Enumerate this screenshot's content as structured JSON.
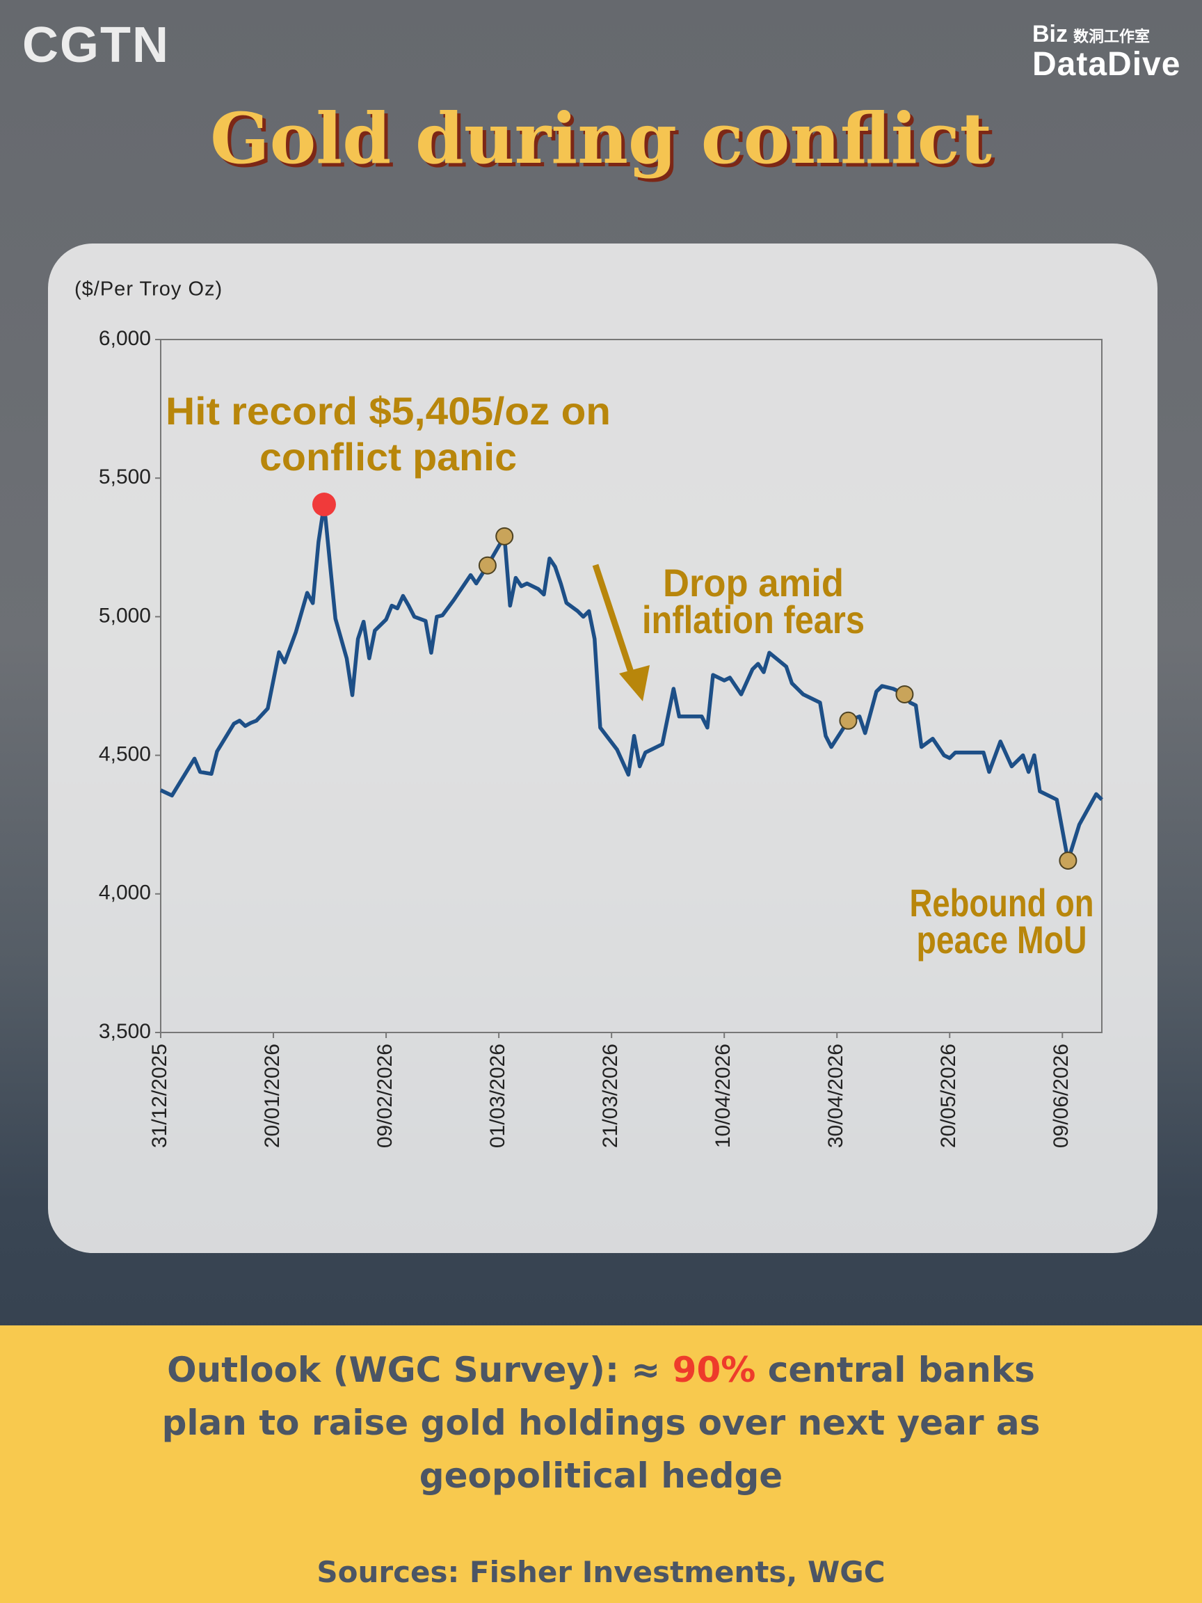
{
  "header": {
    "logo": "CGTN",
    "brand_top": "Biz",
    "brand_cn": "数洞工作室",
    "brand_main": "DataDive",
    "title": "Gold during conflict"
  },
  "chart_data": {
    "type": "line",
    "y_label": "($/Per Troy Oz)",
    "x": [
      "31/12/2025",
      "02/01/2026",
      "06/01/2026",
      "07/01/2026",
      "09/01/2026",
      "10/01/2026",
      "13/01/2026",
      "14/01/2026",
      "15/01/2026",
      "16/01/2026",
      "17/01/2026",
      "19/01/2026",
      "21/01/2026",
      "22/01/2026",
      "24/01/2026",
      "26/01/2026",
      "27/01/2026",
      "28/01/2026",
      "29/01/2026",
      "31/01/2026",
      "02/02/2026",
      "03/02/2026",
      "04/02/2026",
      "05/02/2026",
      "06/02/2026",
      "07/02/2026",
      "09/02/2026",
      "10/02/2026",
      "11/02/2026",
      "12/02/2026",
      "13/02/2026",
      "14/02/2026",
      "16/02/2026",
      "17/02/2026",
      "18/02/2026",
      "19/02/2026",
      "21/02/2026",
      "23/02/2026",
      "24/02/2026",
      "25/02/2026",
      "27/02/2026",
      "02/03/2026",
      "03/03/2026",
      "04/03/2026",
      "05/03/2026",
      "06/03/2026",
      "08/03/2026",
      "09/03/2026",
      "10/03/2026",
      "11/03/2026",
      "12/03/2026",
      "13/03/2026",
      "15/03/2026",
      "16/03/2026",
      "17/03/2026",
      "18/03/2026",
      "19/03/2026",
      "22/03/2026",
      "24/03/2026",
      "25/03/2026",
      "26/03/2026",
      "27/03/2026",
      "30/03/2026",
      "01/04/2026",
      "02/04/2026",
      "06/04/2026",
      "07/04/2026",
      "08/04/2026",
      "10/04/2026",
      "11/04/2026",
      "13/04/2026",
      "15/04/2026",
      "16/04/2026",
      "17/04/2026",
      "18/04/2026",
      "21/04/2026",
      "22/04/2026",
      "24/04/2026",
      "27/04/2026",
      "28/04/2026",
      "29/04/2026",
      "02/05/2026",
      "04/05/2026",
      "05/05/2026",
      "07/05/2026",
      "08/05/2026",
      "10/05/2026",
      "12/05/2026",
      "13/05/2026",
      "14/05/2026",
      "15/05/2026",
      "17/05/2026",
      "19/05/2026",
      "20/05/2026",
      "21/05/2026",
      "25/05/2026",
      "26/05/2026",
      "27/05/2026",
      "29/05/2026",
      "31/05/2026",
      "02/06/2026",
      "03/06/2026",
      "04/06/2026",
      "05/06/2026",
      "08/06/2026",
      "10/06/2026",
      "12/06/2026",
      "15/06/2026",
      "16/06/2026"
    ],
    "series": [
      {
        "color": "#1d4f87",
        "values": [
          4374,
          4355,
          4488,
          4440,
          4433,
          4514,
          4614,
          4625,
          4606,
          4617,
          4625,
          4669,
          4872,
          4835,
          4945,
          5086,
          5049,
          5270,
          5405,
          4993,
          4850,
          4717,
          4920,
          4982,
          4850,
          4950,
          4990,
          5040,
          5030,
          5075,
          5040,
          5000,
          4985,
          4870,
          5000,
          5005,
          5060,
          5120,
          5150,
          5120,
          5185,
          5290,
          5040,
          5140,
          5110,
          5120,
          5100,
          5080,
          5210,
          5180,
          5120,
          5050,
          5020,
          5000,
          5020,
          4920,
          4600,
          4520,
          4430,
          4570,
          4460,
          4510,
          4540,
          4740,
          4640,
          4640,
          4600,
          4790,
          4770,
          4780,
          4720,
          4810,
          4830,
          4800,
          4870,
          4820,
          4760,
          4720,
          4690,
          4570,
          4530,
          4625,
          4640,
          4580,
          4730,
          4750,
          4740,
          4720,
          4690,
          4680,
          4530,
          4560,
          4500,
          4490,
          4510,
          4510,
          4510,
          4440,
          4550,
          4460,
          4500,
          4440,
          4500,
          4370,
          4340,
          4120,
          4250,
          4360,
          4340
        ],
        "markers": [
          {
            "index": 18,
            "color": "#f03a3a"
          },
          {
            "index": 40,
            "color": "#c9a45a"
          },
          {
            "index": 41,
            "color": "#c9a45a"
          },
          {
            "index": 81,
            "color": "#c9a45a"
          },
          {
            "index": 87,
            "color": "#c9a45a"
          },
          {
            "index": 105,
            "color": "#c9a45a"
          }
        ]
      }
    ],
    "xlim": [
      "31/12/2025",
      "16/06/2026"
    ],
    "xticks": [
      "31/12/2025",
      "20/01/2026",
      "09/02/2026",
      "01/03/2026",
      "21/03/2026",
      "10/04/2026",
      "30/04/2026",
      "20/05/2026",
      "09/06/2026"
    ],
    "ylim": [
      3500,
      6000
    ],
    "yticks": [
      {
        "value": 3500,
        "label": "3,500"
      },
      {
        "value": 4000,
        "label": "4,000"
      },
      {
        "value": 4500,
        "label": "4,500"
      },
      {
        "value": 5000,
        "label": "5,000"
      },
      {
        "value": 5500,
        "label": "5,500"
      },
      {
        "value": 6000,
        "label": "6,000"
      }
    ],
    "annotations": [
      [
        "Hit record $5,405/oz on",
        "conflict panic"
      ],
      [
        "Drop amid",
        "inflation fears"
      ],
      [
        "Rebound on",
        "peace MoU"
      ]
    ],
    "annotation_color": "#b8860b"
  },
  "footer": {
    "outlook_before": "Outlook (WGC Survey): ≈ ",
    "outlook_highlight": "90%",
    "outlook_line1_rest": " central banks",
    "outlook_line2": "plan to raise gold holdings over next year as",
    "outlook_line3": "geopolitical hedge",
    "sources": "Sources: Fisher Investments, WGC"
  }
}
